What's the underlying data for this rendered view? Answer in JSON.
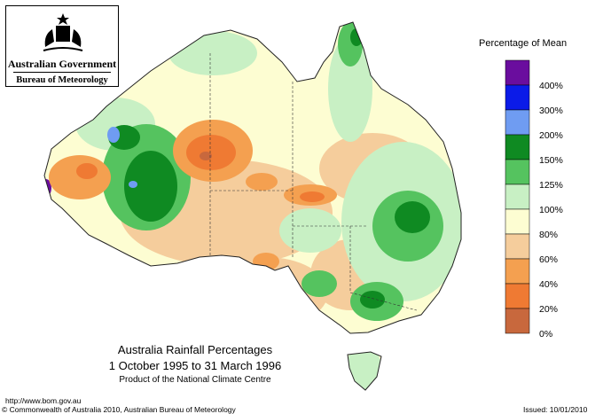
{
  "logo": {
    "government": "Australian Government",
    "bureau": "Bureau of Meteorology"
  },
  "legend": {
    "title": "Percentage of Mean",
    "bands": [
      {
        "label": "400%",
        "color": "#6a0d9e"
      },
      {
        "label": "300%",
        "color": "#0b1be8"
      },
      {
        "label": "200%",
        "color": "#6f9cf2"
      },
      {
        "label": "150%",
        "color": "#0f8a22"
      },
      {
        "label": "125%",
        "color": "#55c35f"
      },
      {
        "label": "100%",
        "color": "#c8f0c4"
      },
      {
        "label": "80%",
        "color": "#fdfdd2"
      },
      {
        "label": "60%",
        "color": "#f5cd9c"
      },
      {
        "label": "40%",
        "color": "#f4a050"
      },
      {
        "label": "20%",
        "color": "#ef7a33"
      },
      {
        "label": "0%",
        "color": "#c8683d"
      }
    ]
  },
  "caption": {
    "title": "Australia Rainfall Percentages",
    "period": "1 October 1995 to 31 March 1996",
    "product": "Product of the National Climate Centre"
  },
  "footer": {
    "url": "http://www.bom.gov.au",
    "copyright": "© Commonwealth of Australia 2010, Australian Bureau of Meteorology",
    "issued": "Issued: 10/01/2010"
  }
}
